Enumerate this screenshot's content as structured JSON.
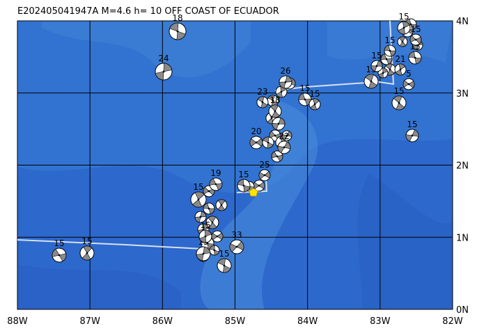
{
  "header": {
    "title": "E202405041947A M=4.6 h= 10 OFF COAST OF ECUADOR"
  },
  "map": {
    "x_labels": [
      "88W",
      "87W",
      "86W",
      "85W",
      "84W",
      "83W",
      "82W"
    ],
    "y_labels": [
      "4N",
      "3N",
      "2N",
      "1N",
      "0N"
    ],
    "events": [
      {
        "depth": "18"
      },
      {
        "depth": "24"
      },
      {
        "depth": "15"
      },
      {
        "depth": "15"
      },
      {
        "depth": "33"
      },
      {
        "depth": "15"
      },
      {
        "depth": "15"
      },
      {
        "depth": "19"
      },
      {
        "depth": "15"
      },
      {
        "depth": "25"
      },
      {
        "depth": "23"
      },
      {
        "depth": "26"
      },
      {
        "depth": "15"
      },
      {
        "depth": "15"
      },
      {
        "depth": "20"
      },
      {
        "depth": "15"
      },
      {
        "depth": "15"
      },
      {
        "depth": "15"
      },
      {
        "depth": "21"
      },
      {
        "depth": "5"
      },
      {
        "depth": "15"
      },
      {
        "depth": "15"
      },
      {
        "depth": "15"
      },
      {
        "depth": "15"
      },
      {
        "depth": "15"
      },
      {
        "depth": "18"
      },
      {
        "depth": "22"
      },
      {
        "depth": "15"
      },
      {
        "depth": "15"
      }
    ]
  }
}
